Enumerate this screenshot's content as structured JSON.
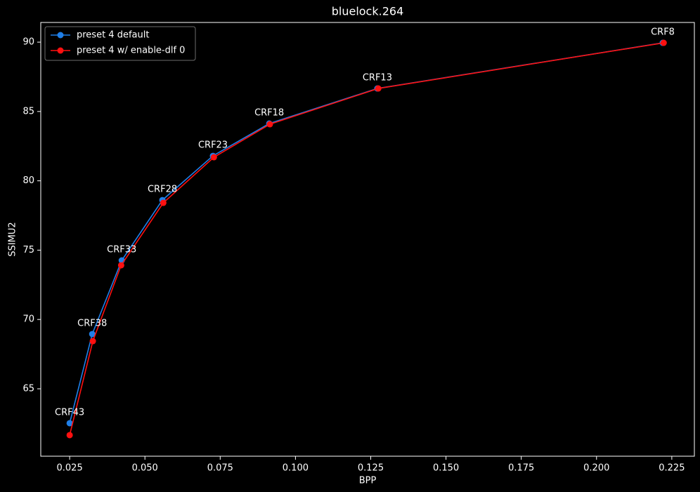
{
  "chart_data": {
    "type": "line",
    "title": "bluelock.264",
    "xlabel": "BPP",
    "ylabel": "SSIMU2",
    "series": [
      {
        "name": "preset 4 default",
        "color": "#1f7fe8",
        "x": [
          0.025,
          0.0325,
          0.0423,
          0.0558,
          0.0726,
          0.0913,
          0.1272,
          0.222
        ],
        "values": [
          62.52,
          68.95,
          74.26,
          78.61,
          81.8,
          84.13,
          86.66,
          89.95
        ]
      },
      {
        "name": "preset 4 w/ enable-dlf 0",
        "color": "#ff1010",
        "x": [
          0.025,
          0.0327,
          0.0421,
          0.0561,
          0.0729,
          0.0915,
          0.1275,
          0.2223
        ],
        "values": [
          61.66,
          68.44,
          73.91,
          78.41,
          81.7,
          84.08,
          86.66,
          89.95
        ]
      }
    ],
    "point_labels": [
      "CRF43",
      "CRF38",
      "CRF33",
      "CRF28",
      "CRF23",
      "CRF18",
      "CRF13",
      "CRF8"
    ],
    "xlim": [
      0.0154,
      0.2325
    ],
    "xticks": [
      0.025,
      {
        "value": 0.05,
        "label": "0.050"
      },
      0.075,
      {
        "value": 0.1,
        "label": "0.100"
      },
      0.125,
      {
        "value": 0.15,
        "label": "0.150"
      },
      0.175,
      {
        "value": 0.2,
        "label": "0.200"
      },
      0.225
    ],
    "ylim": [
      60.14,
      91.42
    ],
    "yticks": [
      65,
      70,
      75,
      80,
      85,
      90
    ],
    "legend": "upper left",
    "grid": false
  }
}
